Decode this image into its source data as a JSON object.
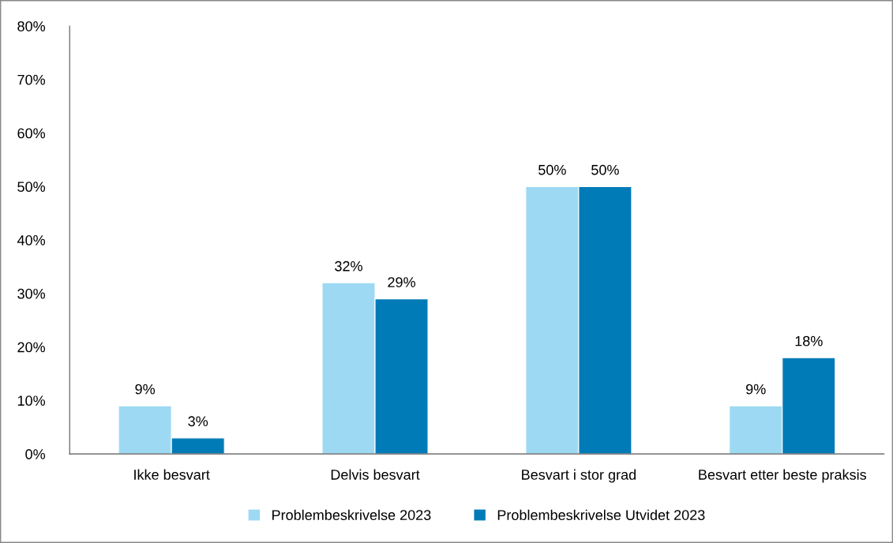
{
  "chart_data": {
    "type": "bar",
    "categories": [
      "Ikke besvart",
      "Delvis besvart",
      "Besvart i stor grad",
      "Besvart etter beste praksis"
    ],
    "series": [
      {
        "name": "Problembeskrivelse 2023",
        "color": "#9dd9f3",
        "values": [
          9,
          32,
          50,
          9
        ],
        "value_labels": [
          "9%",
          "32%",
          "50%",
          "9%"
        ]
      },
      {
        "name": "Problembeskrivelse Utvidet 2023",
        "color": "#007bb8",
        "values": [
          3,
          29,
          50,
          18
        ],
        "value_labels": [
          "3%",
          "29%",
          "50%",
          "18%"
        ]
      }
    ],
    "ylim": [
      0,
      80
    ],
    "yticks": [
      {
        "value": 0,
        "label": "0%"
      },
      {
        "value": 10,
        "label": "10%"
      },
      {
        "value": 20,
        "label": "20%"
      },
      {
        "value": 30,
        "label": "30%"
      },
      {
        "value": 40,
        "label": "40%"
      },
      {
        "value": 50,
        "label": "50%"
      },
      {
        "value": 60,
        "label": "60%"
      },
      {
        "value": 70,
        "label": "70%"
      },
      {
        "value": 80,
        "label": "80%"
      }
    ],
    "grid": false,
    "legend": "bottom"
  }
}
